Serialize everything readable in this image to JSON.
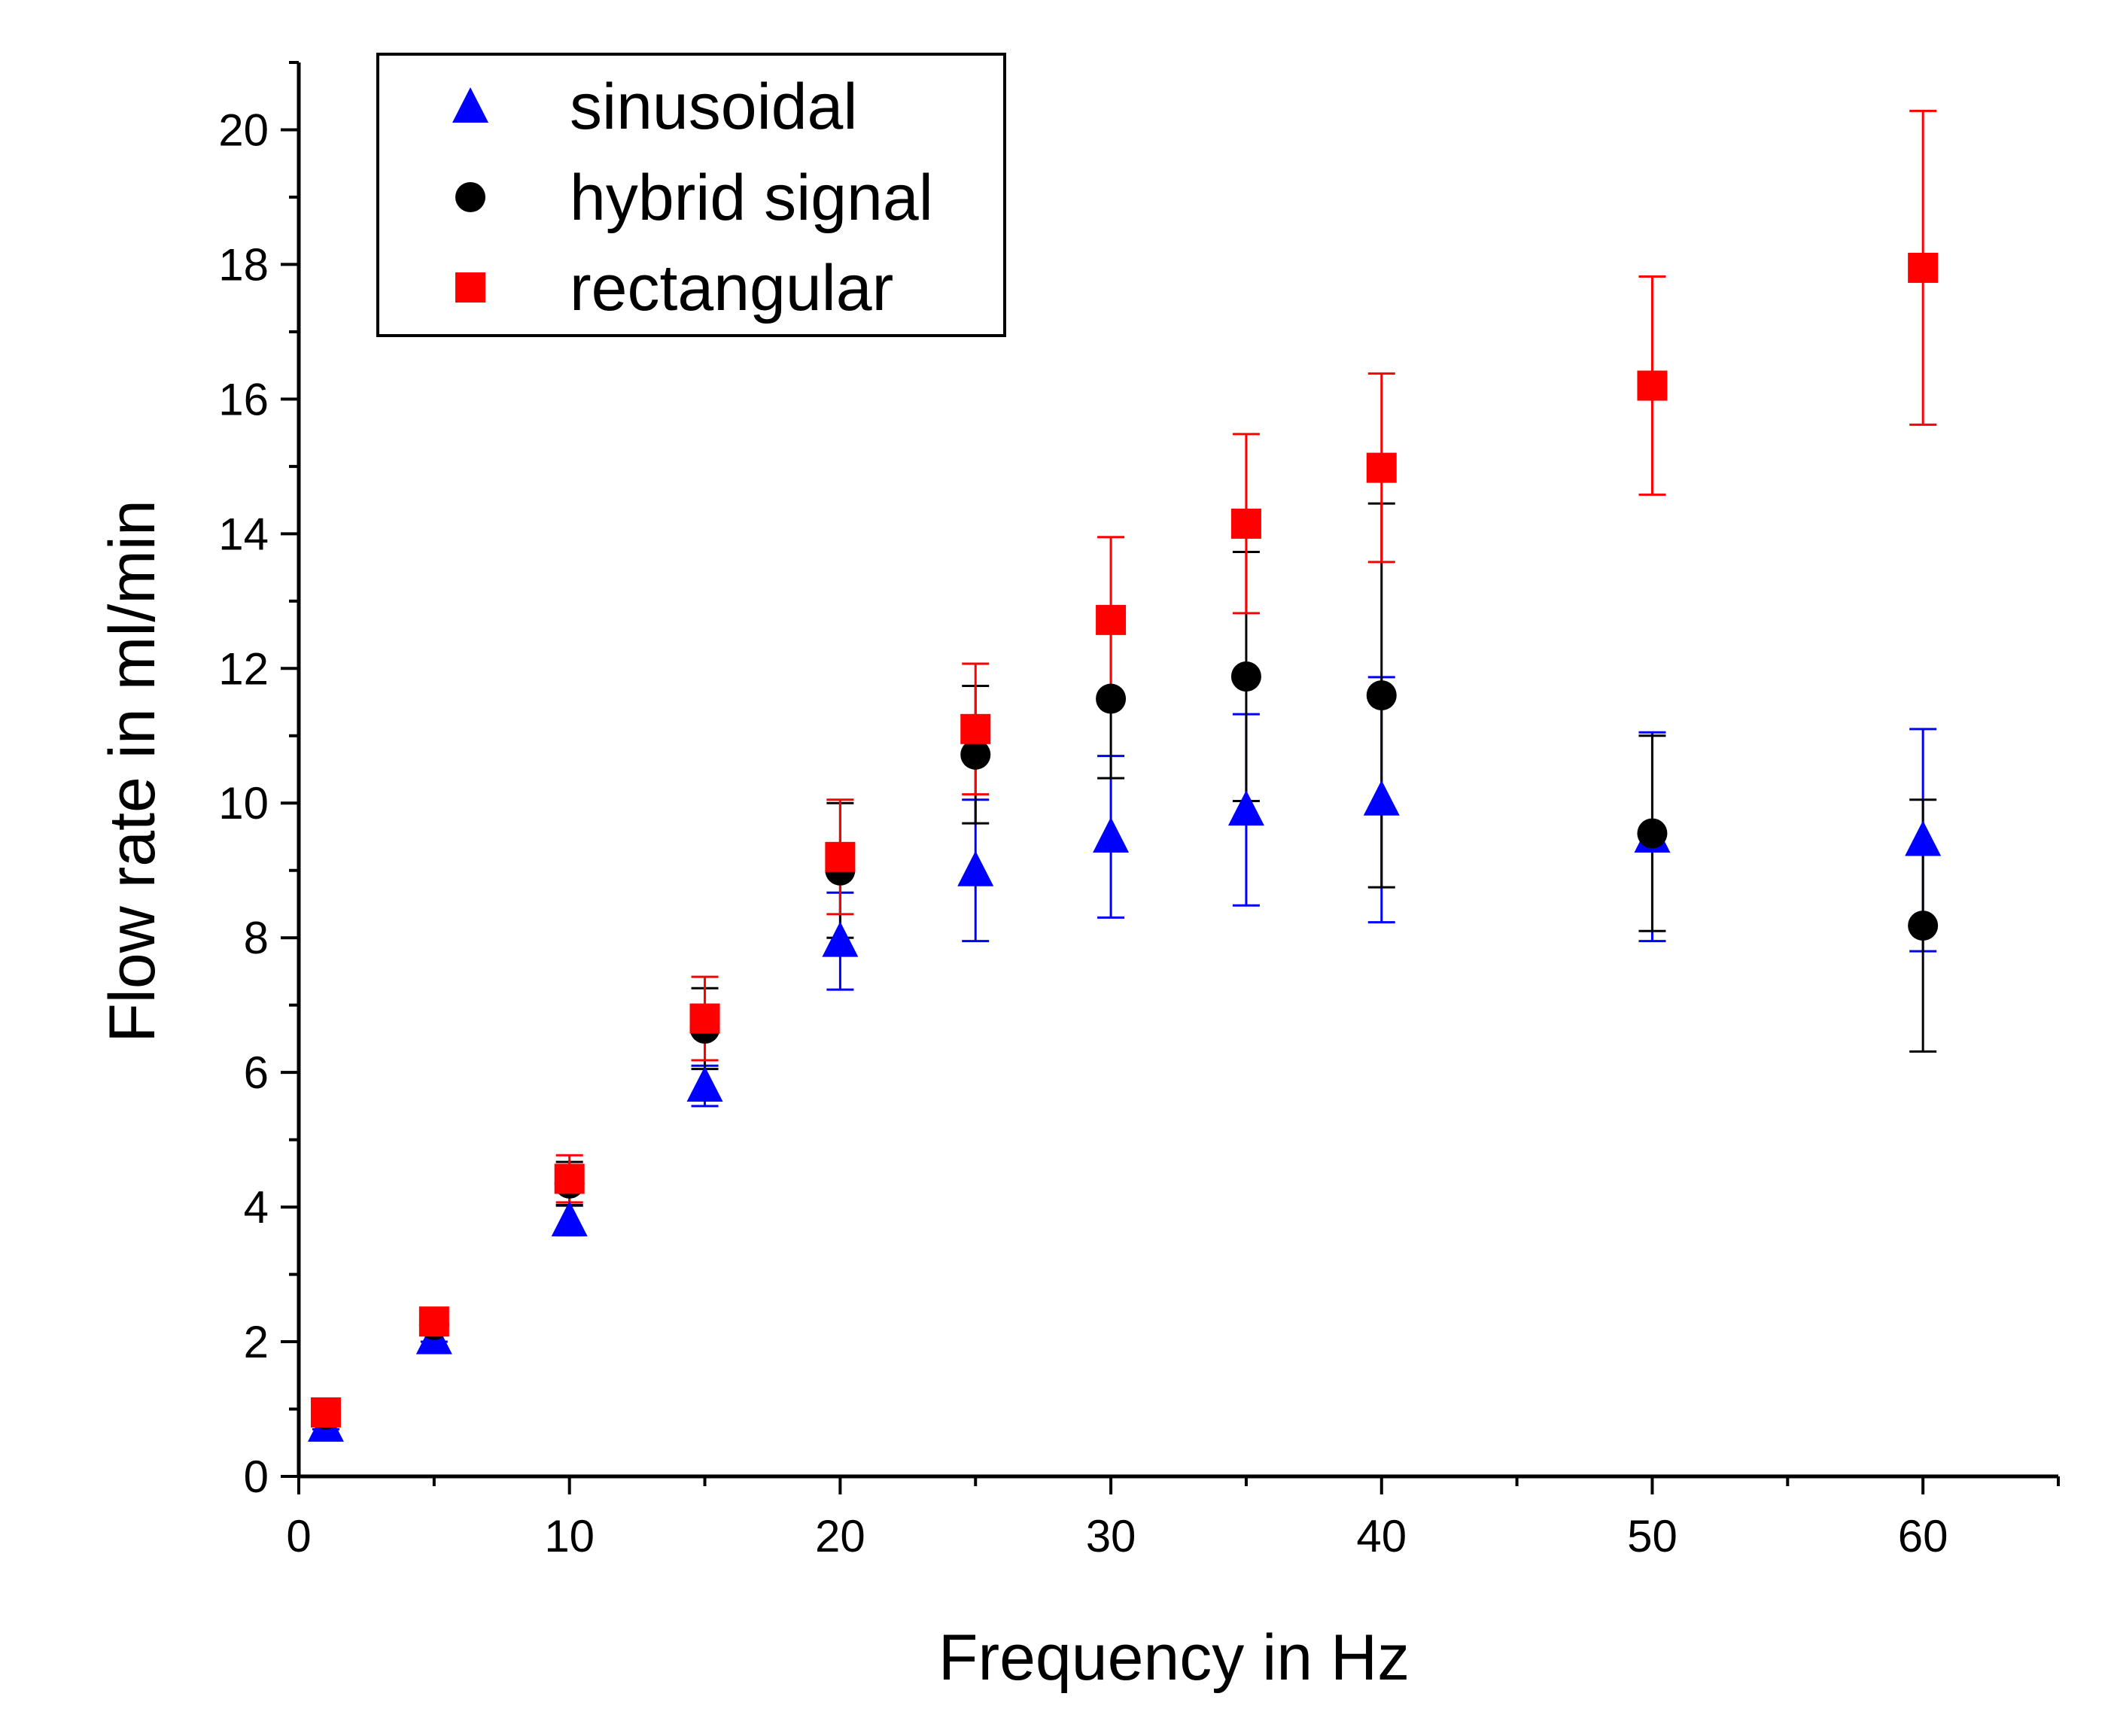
{
  "chart_data": {
    "type": "scatter",
    "xlabel": "Frequency in Hz",
    "ylabel": "Flow rate in ml/min",
    "xlim": [
      0,
      65
    ],
    "ylim": [
      0,
      21
    ],
    "xticks": [
      0,
      10,
      20,
      30,
      40,
      50,
      60
    ],
    "xticks_minor": [
      5,
      15,
      25,
      35,
      45,
      55,
      65
    ],
    "yticks": [
      0,
      2,
      4,
      6,
      8,
      10,
      12,
      14,
      16,
      18,
      20
    ],
    "yticks_minor": [
      1,
      3,
      5,
      7,
      9,
      11,
      13,
      15,
      17,
      19,
      21
    ],
    "grid": false,
    "legend_position": "top-left",
    "series": [
      {
        "name": "sinusoidal",
        "marker": "triangle",
        "color": "#0000ff",
        "x": [
          1,
          5,
          10,
          15,
          20,
          25,
          30,
          35,
          40,
          50,
          60
        ],
        "y": [
          0.75,
          2.05,
          3.8,
          5.8,
          7.95,
          9.0,
          9.5,
          9.9,
          10.05,
          9.5,
          9.45
        ],
        "err": [
          0.05,
          0.05,
          0.22,
          0.3,
          0.72,
          1.05,
          1.2,
          1.42,
          1.82,
          1.55,
          1.65
        ]
      },
      {
        "name": "hybrid signal",
        "marker": "circle",
        "color": "#000000",
        "x": [
          1,
          5,
          10,
          15,
          20,
          25,
          30,
          35,
          40,
          50,
          60
        ],
        "y": [
          0.92,
          2.25,
          4.35,
          6.65,
          9.0,
          10.72,
          11.55,
          11.88,
          11.6,
          9.55,
          8.18
        ],
        "err": [
          0.06,
          0.07,
          0.32,
          0.6,
          1.0,
          1.02,
          1.18,
          1.85,
          2.85,
          1.45,
          1.87
        ]
      },
      {
        "name": "rectangular",
        "marker": "square",
        "color": "#ff0000",
        "x": [
          1,
          5,
          10,
          15,
          20,
          25,
          30,
          35,
          40,
          50,
          60
        ],
        "y": [
          0.95,
          2.3,
          4.42,
          6.8,
          9.2,
          11.1,
          12.72,
          14.15,
          14.98,
          16.2,
          17.95
        ],
        "err": [
          0.08,
          0.1,
          0.35,
          0.62,
          0.85,
          0.97,
          1.23,
          1.33,
          1.4,
          1.62,
          2.33
        ]
      }
    ]
  }
}
